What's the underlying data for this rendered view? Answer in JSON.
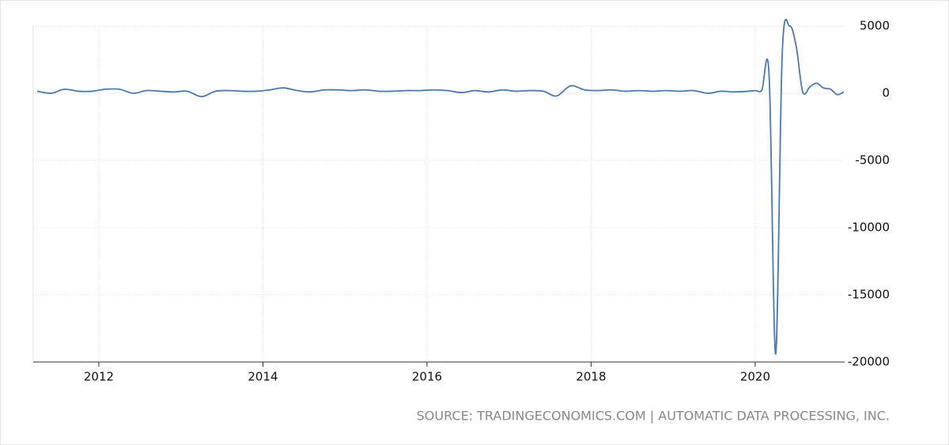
{
  "chart_data": {
    "type": "line",
    "source": "SOURCE: TRADINGECONOMICS.COM | AUTOMATIC DATA PROCESSING, INC.",
    "x": [
      2011.25,
      2011.42,
      2011.58,
      2011.75,
      2011.92,
      2012.08,
      2012.25,
      2012.42,
      2012.58,
      2012.75,
      2012.92,
      2013.08,
      2013.25,
      2013.42,
      2013.58,
      2013.75,
      2013.92,
      2014.08,
      2014.25,
      2014.42,
      2014.58,
      2014.75,
      2014.92,
      2015.08,
      2015.25,
      2015.42,
      2015.58,
      2015.75,
      2015.92,
      2016.08,
      2016.25,
      2016.42,
      2016.58,
      2016.75,
      2016.92,
      2017.08,
      2017.25,
      2017.42,
      2017.58,
      2017.75,
      2017.92,
      2018.08,
      2018.25,
      2018.42,
      2018.58,
      2018.75,
      2018.92,
      2019.08,
      2019.25,
      2019.42,
      2019.58,
      2019.75,
      2019.92,
      2020.0,
      2020.08,
      2020.17,
      2020.25,
      2020.33,
      2020.42,
      2020.5,
      2020.58,
      2020.67,
      2020.75,
      2020.83,
      2020.92,
      2021.0,
      2021.08
    ],
    "series": [
      {
        "color": "#4a78b0",
        "values": [
          150,
          0,
          300,
          150,
          150,
          300,
          300,
          0,
          200,
          150,
          100,
          150,
          -250,
          150,
          200,
          150,
          150,
          250,
          400,
          200,
          100,
          250,
          250,
          200,
          250,
          150,
          150,
          200,
          200,
          250,
          200,
          50,
          200,
          100,
          250,
          150,
          200,
          150,
          -200,
          550,
          250,
          200,
          250,
          150,
          200,
          150,
          200,
          150,
          200,
          0,
          150,
          100,
          150,
          200,
          200,
          1300,
          -19400,
          3000,
          5000,
          3500,
          100,
          500,
          750,
          400,
          300,
          -100,
          100
        ]
      }
    ],
    "xlim": [
      2011.2,
      2021.09
    ],
    "xticks": [
      2012,
      2014,
      2016,
      2018,
      2020
    ],
    "ylim": [
      -20000,
      5000
    ],
    "yticks": [
      5000,
      0,
      -5000,
      -10000,
      -15000,
      -20000
    ],
    "grid": true
  }
}
